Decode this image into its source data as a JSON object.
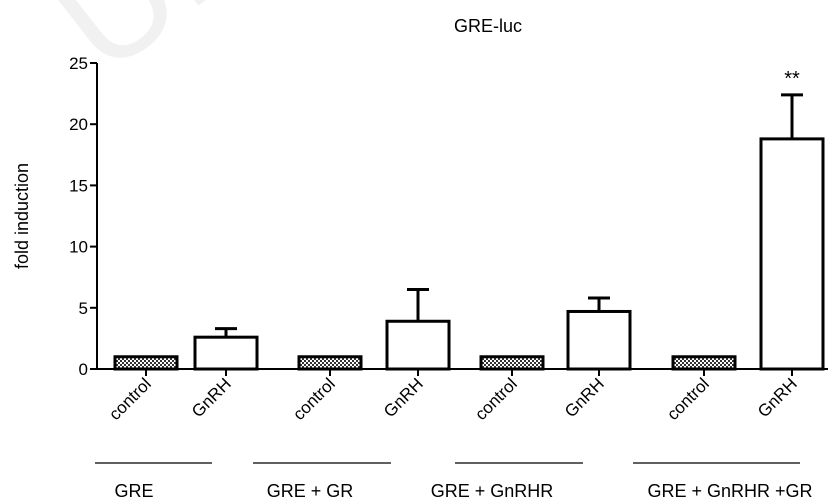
{
  "chart_data": {
    "type": "bar",
    "title": "GRE-luc",
    "xlabel": "",
    "ylabel": "fold induction",
    "ylim": [
      0,
      25
    ],
    "yticks": [
      0,
      5,
      10,
      15,
      20,
      25
    ],
    "grid": false,
    "categories": [
      "control",
      "GnRH",
      "control",
      "GnRH",
      "control",
      "GnRH",
      "control",
      "GnRH"
    ],
    "values": [
      1,
      2.6,
      1,
      3.9,
      1,
      4.7,
      1,
      18.8
    ],
    "error_upper": [
      0,
      0.7,
      0,
      2.6,
      0,
      1.1,
      0,
      3.6
    ],
    "fill": [
      "hatched",
      "white",
      "hatched",
      "white",
      "hatched",
      "white",
      "hatched",
      "white"
    ],
    "significance": [
      "",
      "",
      "",
      "",
      "",
      "",
      "",
      "**"
    ],
    "groups": [
      {
        "label": "GRE",
        "bars": [
          0,
          1
        ]
      },
      {
        "label": "GRE + GR",
        "bars": [
          2,
          3
        ]
      },
      {
        "label": "GRE + GnRHR",
        "bars": [
          4,
          5
        ]
      },
      {
        "label": "GRE + GnRHR  +GR",
        "bars": [
          6,
          7
        ]
      }
    ]
  },
  "watermark": "Univer"
}
